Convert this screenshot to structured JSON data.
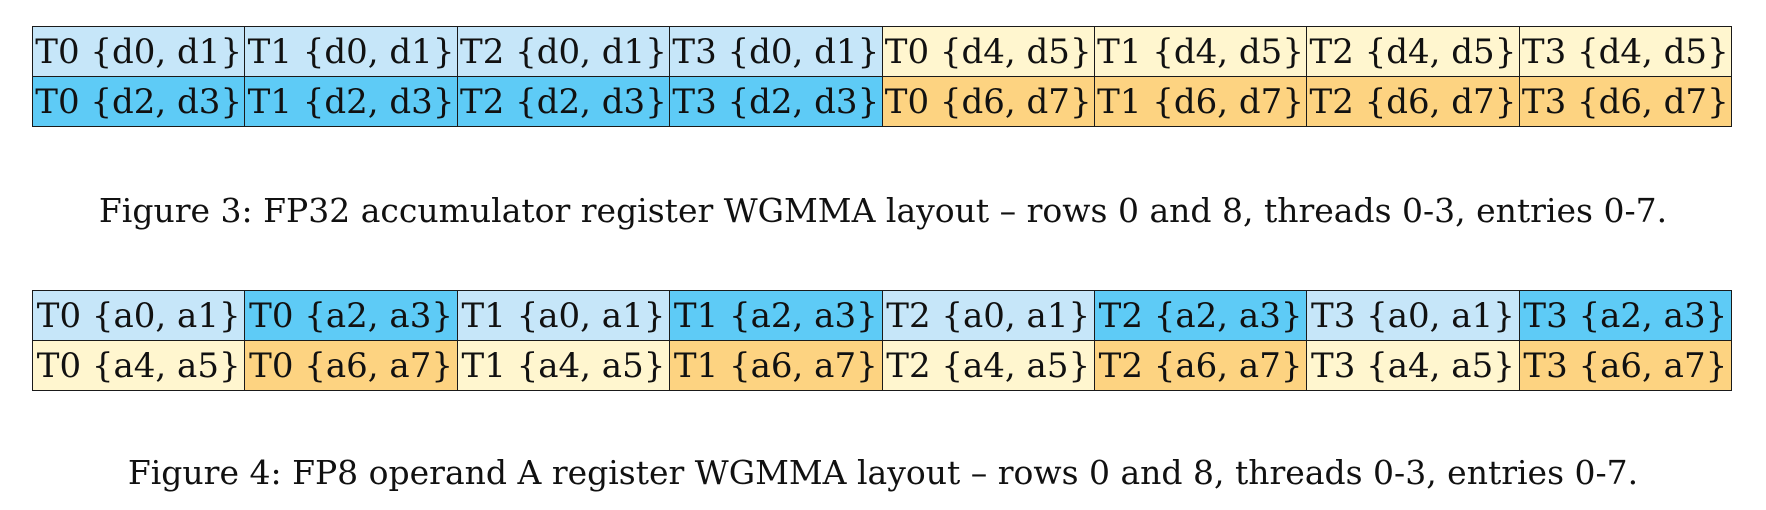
{
  "colors": {
    "light_blue": "#c6e6f9",
    "blue": "#5ecbf6",
    "light_yellow": "#fff6cf",
    "orange": "#fdd381"
  },
  "figure3": {
    "caption": "Figure 3: FP32 accumulator register WGMMA layout – rows 0 and 8, threads 0-3, entries 0-7.",
    "rows": [
      [
        {
          "text": "T0 {d0, d1}",
          "color": "light_blue"
        },
        {
          "text": "T1 {d0, d1}",
          "color": "light_blue"
        },
        {
          "text": "T2 {d0, d1}",
          "color": "light_blue"
        },
        {
          "text": "T3 {d0, d1}",
          "color": "light_blue"
        },
        {
          "text": "T0 {d4, d5}",
          "color": "light_yellow"
        },
        {
          "text": "T1 {d4, d5}",
          "color": "light_yellow"
        },
        {
          "text": "T2 {d4, d5}",
          "color": "light_yellow"
        },
        {
          "text": "T3 {d4, d5}",
          "color": "light_yellow"
        }
      ],
      [
        {
          "text": "T0 {d2, d3}",
          "color": "blue"
        },
        {
          "text": "T1 {d2, d3}",
          "color": "blue"
        },
        {
          "text": "T2 {d2, d3}",
          "color": "blue"
        },
        {
          "text": "T3 {d2, d3}",
          "color": "blue"
        },
        {
          "text": "T0 {d6, d7}",
          "color": "orange"
        },
        {
          "text": "T1 {d6, d7}",
          "color": "orange"
        },
        {
          "text": "T2 {d6, d7}",
          "color": "orange"
        },
        {
          "text": "T3 {d6, d7}",
          "color": "orange"
        }
      ]
    ]
  },
  "figure4": {
    "caption": "Figure 4: FP8 operand A register WGMMA layout – rows 0 and 8, threads 0-3, entries 0-7.",
    "rows": [
      [
        {
          "text": "T0 {a0, a1}",
          "color": "light_blue"
        },
        {
          "text": "T0 {a2, a3}",
          "color": "blue"
        },
        {
          "text": "T1 {a0, a1}",
          "color": "light_blue"
        },
        {
          "text": "T1 {a2, a3}",
          "color": "blue"
        },
        {
          "text": "T2 {a0, a1}",
          "color": "light_blue"
        },
        {
          "text": "T2 {a2, a3}",
          "color": "blue"
        },
        {
          "text": "T3 {a0, a1}",
          "color": "light_blue"
        },
        {
          "text": "T3 {a2, a3}",
          "color": "blue"
        }
      ],
      [
        {
          "text": "T0 {a4, a5}",
          "color": "light_yellow"
        },
        {
          "text": "T0 {a6, a7}",
          "color": "orange"
        },
        {
          "text": "T1 {a4, a5}",
          "color": "light_yellow"
        },
        {
          "text": "T1 {a6, a7}",
          "color": "orange"
        },
        {
          "text": "T2 {a4, a5}",
          "color": "light_yellow"
        },
        {
          "text": "T2 {a6, a7}",
          "color": "orange"
        },
        {
          "text": "T3 {a4, a5}",
          "color": "light_yellow"
        },
        {
          "text": "T3 {a6, a7}",
          "color": "orange"
        }
      ]
    ]
  }
}
